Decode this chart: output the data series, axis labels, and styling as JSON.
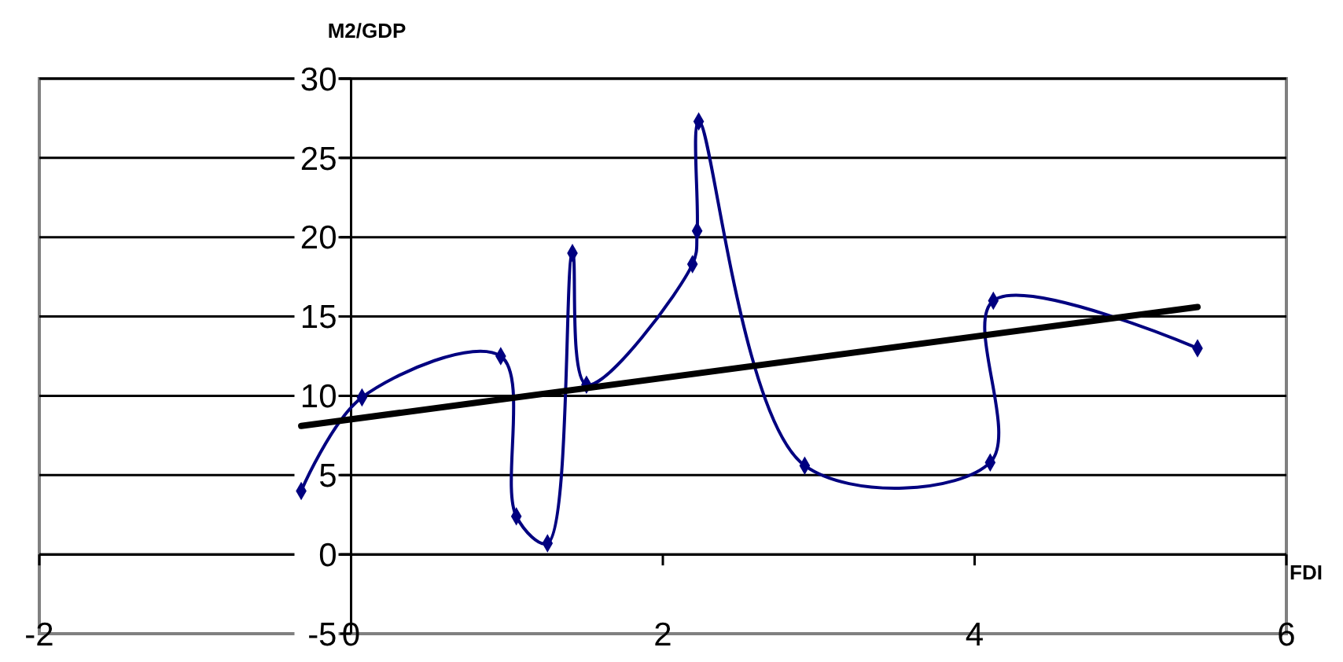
{
  "chart_data": {
    "type": "line",
    "xlabel": "FDI",
    "ylabel": "M2/GDP",
    "xlim": [
      -2,
      6
    ],
    "ylim": [
      -5,
      30
    ],
    "xticks": [
      -2,
      0,
      2,
      4,
      6
    ],
    "yticks": [
      -5,
      0,
      5,
      10,
      15,
      20,
      25,
      30
    ],
    "grid": "y",
    "series": [
      {
        "color": "#000080",
        "marker": "diamond",
        "x": [
          -0.32,
          0.07,
          0.96,
          1.06,
          1.26,
          1.42,
          1.51,
          2.19,
          2.22,
          2.23,
          2.91,
          4.1,
          4.12,
          5.43
        ],
        "values": [
          4,
          9.9,
          12.5,
          2.4,
          0.7,
          19,
          10.7,
          18.3,
          20.4,
          27.3,
          5.6,
          5.8,
          16,
          13
        ]
      },
      {
        "color": "#000000",
        "x": [
          -0.32,
          5.43
        ],
        "values": [
          8.1,
          15.6
        ]
      }
    ]
  }
}
